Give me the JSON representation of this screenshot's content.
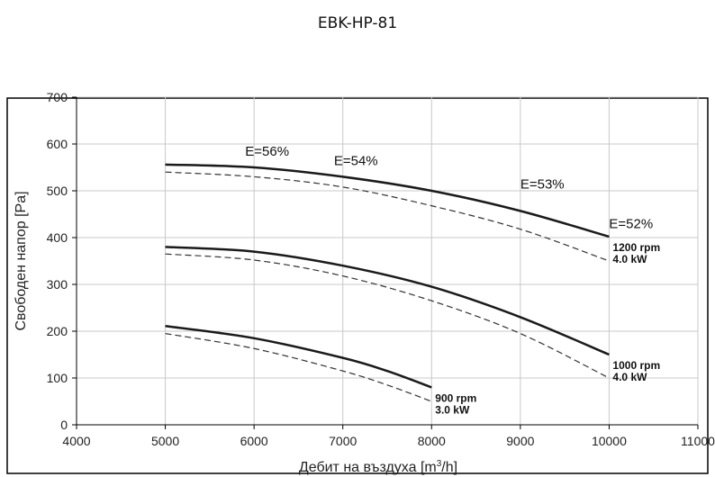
{
  "page": {
    "title": "EBK-HP-81"
  },
  "chart_data": {
    "type": "line",
    "title": "EBK-HP-81",
    "xlabel_prefix": "Дебит на въздуха [m",
    "xlabel_sup": "3",
    "xlabel_suffix": "/h]",
    "ylabel": "Свободен напор [Pa]",
    "xlim": [
      4000,
      11000
    ],
    "ylim": [
      0,
      700
    ],
    "xticks": [
      4000,
      5000,
      6000,
      7000,
      8000,
      9000,
      10000,
      11000
    ],
    "yticks": [
      0,
      100,
      200,
      300,
      400,
      500,
      600,
      700
    ],
    "grid": true,
    "series": [
      {
        "name": "1200 rpm 4.0 kW",
        "rpm_label": "1200 rpm",
        "power_label": "4.0 kW",
        "style": "solid",
        "x": [
          5000,
          6000,
          7000,
          8000,
          9000,
          10000
        ],
        "y": [
          556,
          550,
          530,
          500,
          457,
          402
        ]
      },
      {
        "style": "dashed",
        "x": [
          5000,
          6000,
          7000,
          8000,
          9000,
          10000
        ],
        "y": [
          540,
          530,
          508,
          468,
          418,
          350
        ]
      },
      {
        "name": "1000 rpm 4.0 kW",
        "rpm_label": "1000 rpm",
        "power_label": "4.0 kW",
        "style": "solid",
        "x": [
          5000,
          6000,
          7000,
          8000,
          9000,
          10000
        ],
        "y": [
          380,
          370,
          340,
          295,
          230,
          150
        ]
      },
      {
        "style": "dashed",
        "x": [
          5000,
          6000,
          7000,
          8000,
          9000,
          10000
        ],
        "y": [
          365,
          352,
          318,
          265,
          195,
          100
        ]
      },
      {
        "name": "900 rpm 3.0 kW",
        "rpm_label": "900 rpm",
        "power_label": "3.0 kW",
        "style": "solid",
        "x": [
          5000,
          6000,
          7000,
          7500,
          8000
        ],
        "y": [
          211,
          185,
          143,
          115,
          80
        ]
      },
      {
        "style": "dashed",
        "x": [
          5000,
          6000,
          7000,
          7500,
          8000
        ],
        "y": [
          195,
          163,
          115,
          85,
          50
        ]
      }
    ],
    "annotations": [
      {
        "text": "E=56%",
        "x": 5900,
        "y": 575
      },
      {
        "text": "E=54%",
        "x": 6900,
        "y": 555
      },
      {
        "text": "E=53%",
        "x": 9000,
        "y": 505
      },
      {
        "text": "E=52%",
        "x": 10000,
        "y": 420
      }
    ]
  }
}
